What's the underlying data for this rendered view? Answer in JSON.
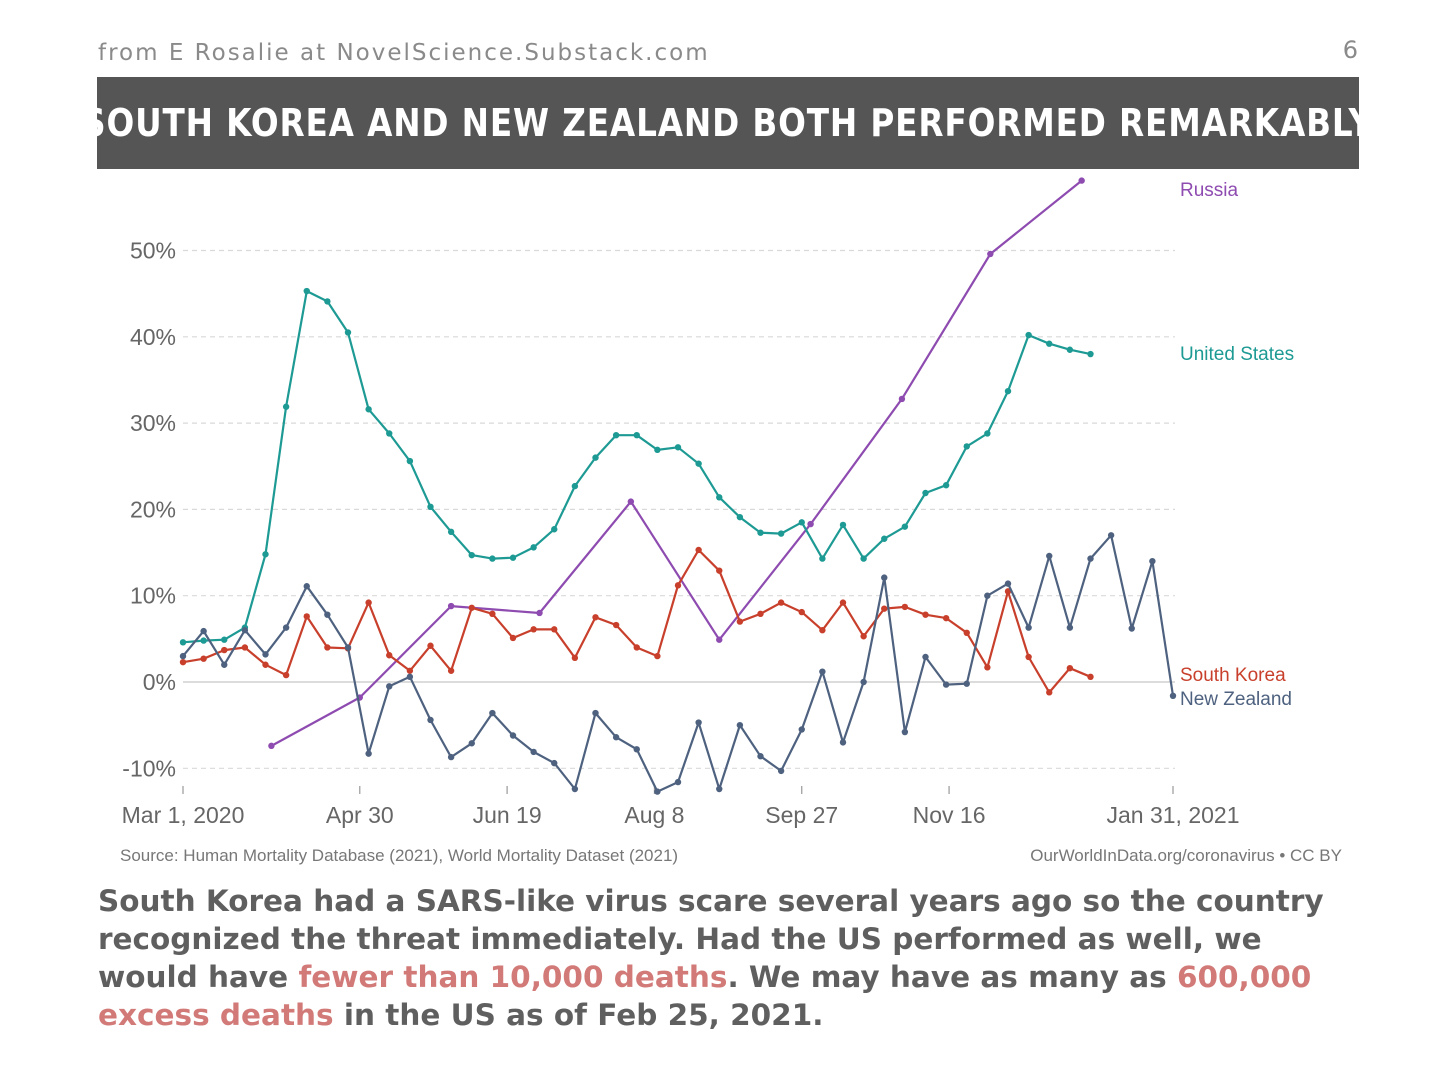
{
  "header": {
    "attribution": "from E Rosalie at NovelScience.Substack.com",
    "page_number": "6",
    "banner_title": "SOUTH KOREA AND NEW ZEALAND BOTH PERFORMED REMARKABLY"
  },
  "chart_data": {
    "type": "line",
    "title": "",
    "xlabel": "",
    "ylabel": "",
    "grid": true,
    "x_tick_labels": [
      "Mar 1, 2020",
      "Apr 30",
      "Jun 19",
      "Aug 8",
      "Sep 27",
      "Nov 16",
      "Jan 31, 2021"
    ],
    "x_ticks_days": [
      0,
      60,
      110,
      160,
      210,
      260,
      336
    ],
    "y_tick_labels": [
      "-10%",
      "0%",
      "10%",
      "20%",
      "30%",
      "40%",
      "50%"
    ],
    "y_ticks": [
      -10,
      0,
      10,
      20,
      30,
      40,
      50
    ],
    "ylim": [
      -13,
      58
    ],
    "x_unit": "days since Mar 1, 2020",
    "series": [
      {
        "name": "Russia",
        "color": "#8e4bb0",
        "x": [
          30,
          60,
          91,
          121,
          152,
          182,
          213,
          244,
          274,
          305
        ],
        "y": [
          -7.4,
          -1.8,
          8.8,
          8.0,
          20.9,
          4.9,
          18.3,
          32.8,
          49.6,
          58.1
        ]
      },
      {
        "name": "United States",
        "color": "#1e9a94",
        "x": [
          0,
          7,
          14,
          21,
          28,
          35,
          42,
          49,
          56,
          63,
          70,
          77,
          84,
          91,
          98,
          105,
          112,
          119,
          126,
          133,
          140,
          147,
          154,
          161,
          168,
          175,
          182,
          189,
          196,
          203,
          210,
          217,
          224,
          231,
          238,
          245,
          252,
          259,
          266,
          273,
          280,
          287,
          294,
          301,
          308
        ],
        "y": [
          4.6,
          4.8,
          4.9,
          6.3,
          14.8,
          31.9,
          45.3,
          44.1,
          40.5,
          31.6,
          28.8,
          25.6,
          20.3,
          17.4,
          14.7,
          14.3,
          14.4,
          15.6,
          17.7,
          22.7,
          26.0,
          28.6,
          28.6,
          26.9,
          27.2,
          25.3,
          21.4,
          19.1,
          17.3,
          17.2,
          18.5,
          14.3,
          18.2,
          14.3,
          16.6,
          18.0,
          21.9,
          22.8,
          27.3,
          28.8,
          33.7,
          40.2,
          39.2,
          38.5,
          38.0
        ]
      },
      {
        "name": "South Korea",
        "color": "#c8402c",
        "x": [
          0,
          7,
          14,
          21,
          28,
          35,
          42,
          49,
          56,
          63,
          70,
          77,
          84,
          91,
          98,
          105,
          112,
          119,
          126,
          133,
          140,
          147,
          154,
          161,
          168,
          175,
          182,
          189,
          196,
          203,
          210,
          217,
          224,
          231,
          238,
          245,
          252,
          259,
          266,
          273,
          280,
          287,
          294,
          301,
          308
        ],
        "y": [
          2.3,
          2.7,
          3.7,
          4.0,
          2.0,
          0.8,
          7.6,
          4.0,
          3.9,
          9.2,
          3.1,
          1.3,
          4.2,
          1.3,
          8.6,
          7.9,
          5.1,
          6.1,
          6.1,
          2.8,
          7.5,
          6.6,
          4.0,
          3.0,
          11.2,
          15.3,
          12.9,
          7.0,
          7.9,
          9.2,
          8.1,
          6.0,
          9.2,
          5.3,
          8.5,
          8.7,
          7.8,
          7.4,
          5.7,
          1.7,
          10.5,
          2.9,
          -1.2,
          1.6,
          0.6
        ]
      },
      {
        "name": "New Zealand",
        "color": "#4e6280",
        "x": [
          0,
          7,
          14,
          21,
          28,
          35,
          42,
          49,
          56,
          63,
          70,
          77,
          84,
          91,
          98,
          105,
          112,
          119,
          126,
          133,
          140,
          147,
          154,
          161,
          168,
          175,
          182,
          189,
          196,
          203,
          210,
          217,
          224,
          231,
          238,
          245,
          252,
          259,
          266,
          273,
          280,
          287,
          294,
          301,
          308,
          315,
          322,
          329,
          336
        ],
        "y": [
          3.0,
          5.9,
          2.0,
          6.0,
          3.2,
          6.3,
          11.1,
          7.8,
          4.0,
          -8.3,
          -0.5,
          0.6,
          -4.4,
          -8.7,
          -7.1,
          -3.6,
          -6.2,
          -8.1,
          -9.4,
          -12.4,
          -3.6,
          -6.4,
          -7.8,
          -12.7,
          -11.6,
          -4.7,
          -12.4,
          -5.0,
          -8.6,
          -10.3,
          -5.5,
          1.2,
          -7.0,
          0.0,
          12.1,
          -5.8,
          2.9,
          -0.3,
          -0.2,
          10.0,
          11.4,
          6.3,
          14.6,
          6.3,
          14.3,
          17.0,
          6.2,
          14.0,
          -1.6
        ]
      }
    ],
    "source_note": "Source: Human Mortality Database (2021), World Mortality Dataset (2021)",
    "license_note": "OurWorldInData.org/coronavirus • CC BY"
  },
  "caption": {
    "part1": "South Korea had a SARS-like virus scare several years ago so the country recognized the threat immediately. Had the US performed as well, we would have ",
    "highlight1": "fewer than 10,000 deaths",
    "part2": ". We may have as many as ",
    "highlight2": "600,000 excess deaths",
    "part3": " in the US as of Feb 25, 2021."
  }
}
